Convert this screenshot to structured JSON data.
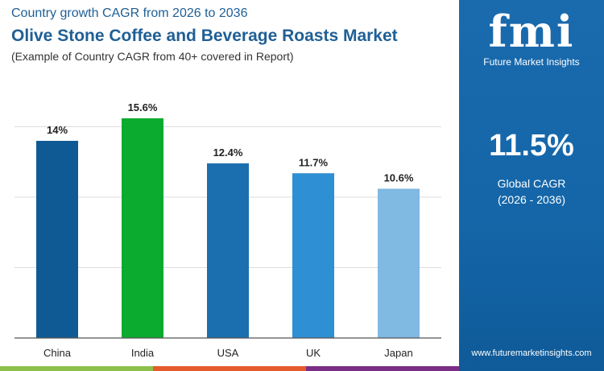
{
  "header": {
    "title_top": "Country growth CAGR from 2026 to 2036",
    "title_main": "Olive Stone Coffee and Beverage Roasts Market",
    "subtitle": "(Example of Country CAGR from 40+ covered in Report)"
  },
  "panel": {
    "brand": "fmi",
    "brand_full": "Future Market Insights",
    "global_value": "11.5%",
    "global_label": "Global CAGR",
    "global_period": "(2026 - 2036)",
    "url": "www.futuremarketinsights.com"
  },
  "colors": {
    "panel": "#1466a8",
    "stripes": [
      "#8cc04a",
      "#e55b2b",
      "#7b2e86"
    ]
  },
  "chart_data": {
    "type": "bar",
    "categories": [
      "China",
      "India",
      "USA",
      "UK",
      "Japan"
    ],
    "values": [
      14,
      15.6,
      12.4,
      11.7,
      10.6
    ],
    "labels": [
      "14%",
      "15.6%",
      "12.4%",
      "11.7%",
      "10.6%"
    ],
    "colors": [
      "#0f5a94",
      "#0bab2f",
      "#1c6fae",
      "#2f8fd4",
      "#80b9e2"
    ],
    "ylim": [
      0,
      16
    ],
    "grid": true,
    "gridlines": [
      5,
      10,
      15
    ]
  }
}
